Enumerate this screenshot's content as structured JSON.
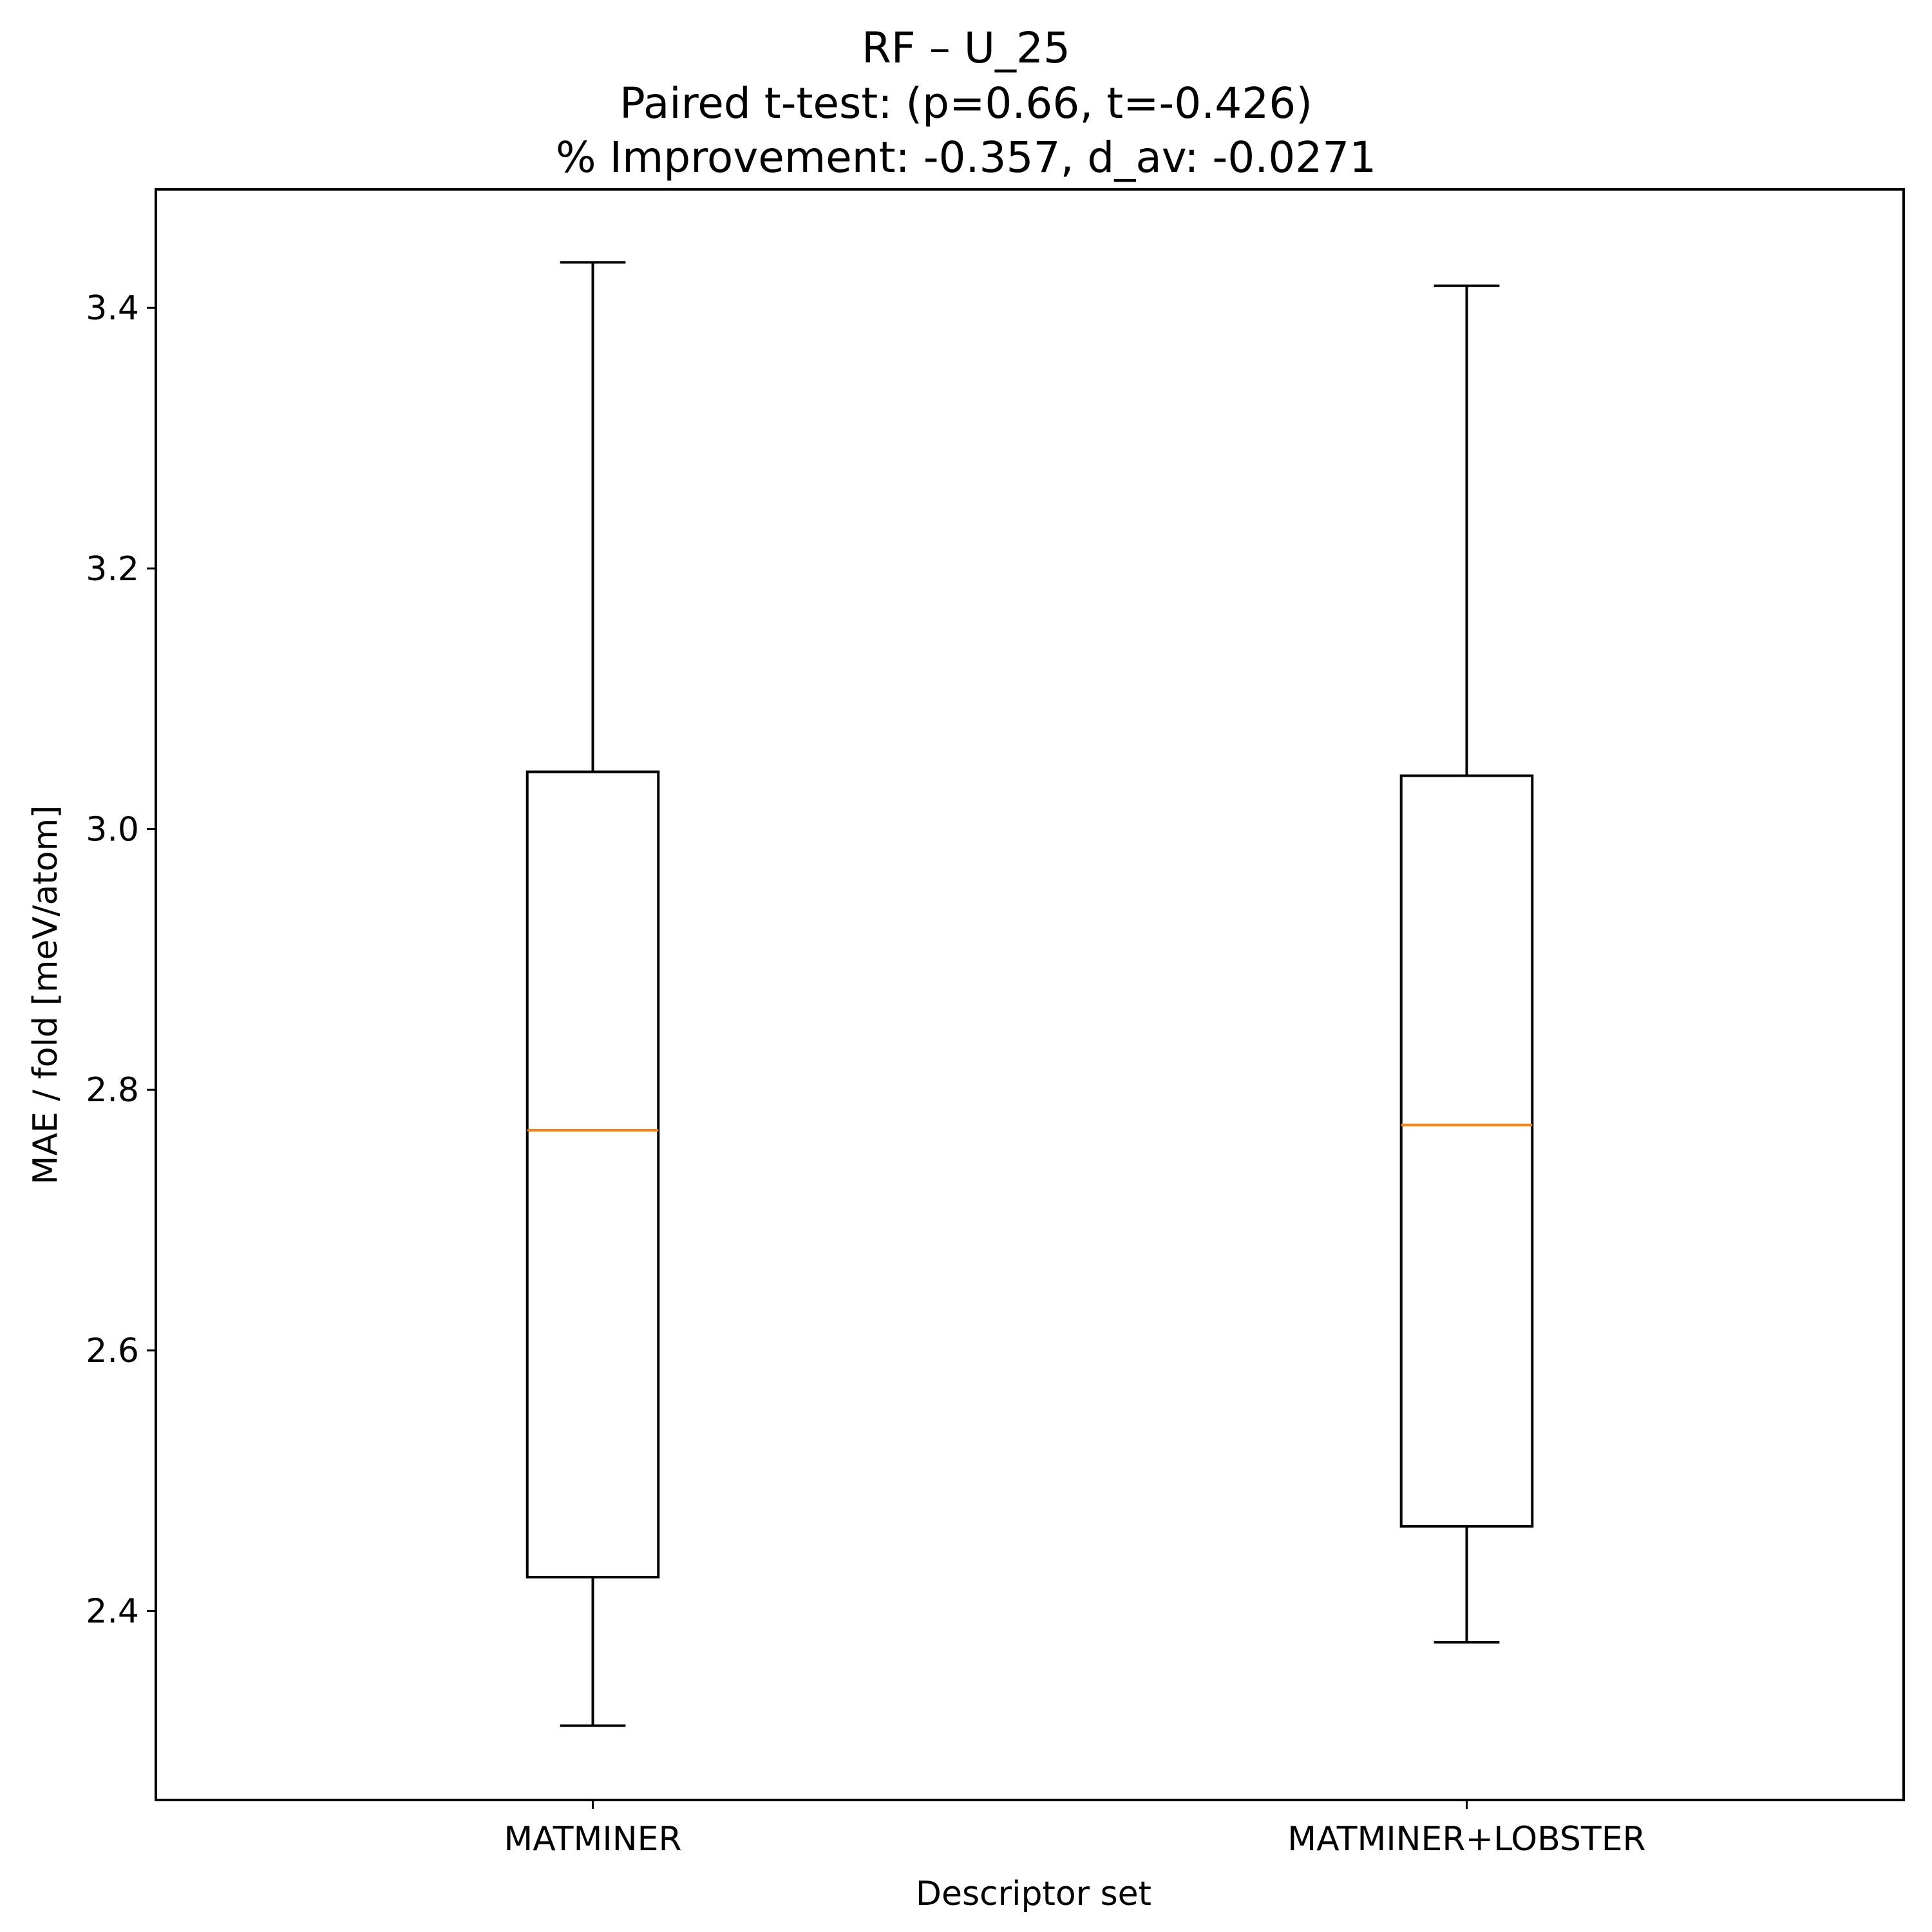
{
  "chart_data": {
    "type": "box",
    "title": "RF – U_25",
    "subtitle_lines": [
      "Paired t-test: (p=0.66, t=-0.426)",
      "% Improvement: -0.357, d_av: -0.0271"
    ],
    "xlabel": "Descriptor set",
    "ylabel": "MAE / fold [meV/atom]",
    "categories": [
      "MATMINER",
      "MATMINER+LOBSTER"
    ],
    "series": [
      {
        "name": "MATMINER",
        "whislo": 2.312,
        "q1": 2.426,
        "median": 2.769,
        "q3": 3.044,
        "whishi": 3.435
      },
      {
        "name": "MATMINER+LOBSTER",
        "whislo": 2.376,
        "q1": 2.465,
        "median": 2.773,
        "q3": 3.041,
        "whishi": 3.417
      }
    ],
    "ylim": [
      2.255,
      3.491
    ],
    "yticks": [
      2.4,
      2.6,
      2.8,
      3.0,
      3.2,
      3.4
    ],
    "ytick_labels": [
      "2.4",
      "2.6",
      "2.8",
      "3.0",
      "3.2",
      "3.4"
    ],
    "grid": false,
    "legend": null
  },
  "colors": {
    "box": "#000000",
    "median": "#ff7f0e",
    "background": "#ffffff"
  }
}
